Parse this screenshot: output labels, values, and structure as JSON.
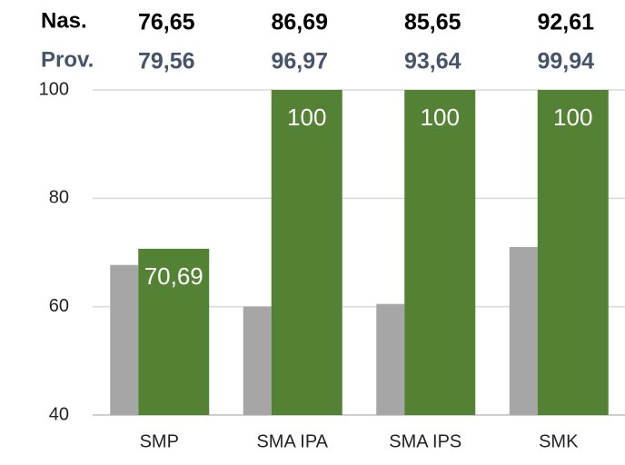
{
  "chart_data": {
    "type": "bar",
    "categories": [
      "SMP",
      "SMA IPA",
      "SMA IPS",
      "SMK"
    ],
    "series": [
      {
        "color": "#a6a6a6",
        "values": [
          67.7,
          60,
          60.5,
          71
        ]
      },
      {
        "color": "#548235",
        "values": [
          70.69,
          100,
          100,
          100
        ],
        "value_labels": [
          "70,69",
          "100",
          "100",
          "100"
        ]
      }
    ],
    "annotations": [
      {
        "label": "Nas.",
        "color": "#000000",
        "values": [
          "76,65",
          "86,69",
          "85,65",
          "92,61"
        ]
      },
      {
        "label": "Prov.",
        "color": "#44546a",
        "values": [
          "79,56",
          "96,97",
          "93,64",
          "99,94"
        ]
      }
    ],
    "ylim": [
      40,
      100
    ],
    "yticks": [
      40,
      60,
      80,
      100
    ],
    "grid": true
  }
}
